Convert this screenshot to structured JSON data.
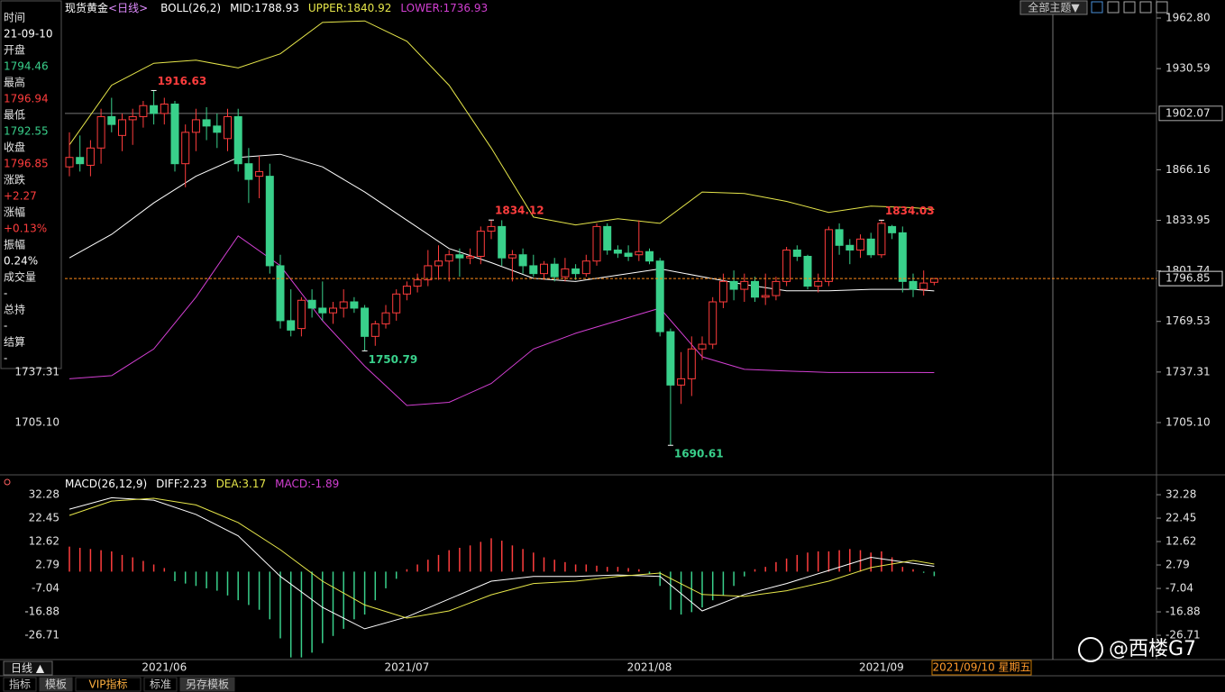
{
  "toolbar": {
    "theme_menu": "全部主题▼"
  },
  "info_panel": [
    {
      "label": "时间",
      "value": "21-09-10",
      "color": "#ffffff"
    },
    {
      "label": "开盘",
      "value": "1794.46",
      "color": "#39d08b"
    },
    {
      "label": "最高",
      "value": "1796.94",
      "color": "#ff3d3d"
    },
    {
      "label": "最低",
      "value": "1792.55",
      "color": "#39d08b"
    },
    {
      "label": "收盘",
      "value": "1796.85",
      "color": "#ff3d3d"
    },
    {
      "label": "涨跌",
      "value": "+2.27",
      "color": "#ff3d3d"
    },
    {
      "label": "涨幅",
      "value": "+0.13%",
      "color": "#ff3d3d"
    },
    {
      "label": "振幅",
      "value": "0.24%",
      "color": "#ffffff"
    },
    {
      "label": "成交量",
      "value": "-",
      "color": "#ffffff"
    },
    {
      "label": "总持",
      "value": "-",
      "color": "#ffffff"
    },
    {
      "label": "结算",
      "value": "-",
      "color": "#ffffff"
    }
  ],
  "chart_data": [
    {
      "type": "candlestick",
      "title": "现货黄金",
      "period": "<日线>",
      "indicator": "BOLL(26,2)",
      "up_color": "#ff3d3d",
      "down_color": "#39d08b",
      "categories": [
        null,
        null,
        null,
        null,
        null,
        null,
        null,
        null,
        null,
        "2021/06",
        null,
        null,
        null,
        null,
        null,
        null,
        null,
        null,
        null,
        null,
        null,
        null,
        null,
        null,
        null,
        null,
        null,
        null,
        null,
        null,
        null,
        null,
        "2021/07",
        null,
        null,
        null,
        null,
        null,
        null,
        null,
        null,
        null,
        null,
        null,
        null,
        null,
        null,
        null,
        null,
        null,
        null,
        null,
        null,
        null,
        null,
        "2021/08",
        null,
        null,
        null,
        null,
        null,
        null,
        null,
        null,
        null,
        null,
        null,
        null,
        null,
        null,
        null,
        null,
        null,
        null,
        null,
        null,
        null,
        "2021/09",
        null,
        null,
        null,
        null,
        null
      ],
      "open": [
        1868,
        1874,
        1869,
        1880,
        1900,
        1888,
        1898,
        1900,
        1907,
        1902,
        1908,
        1870,
        1890,
        1898,
        1894,
        1886,
        1900,
        1870,
        1862,
        1862,
        1805,
        1770,
        1765,
        1783,
        1778,
        1775,
        1778,
        1782,
        1778,
        1760,
        1768,
        1775,
        1787,
        1792,
        1796,
        1805,
        1808,
        1812,
        1810,
        1811,
        1827,
        1830,
        1810,
        1812,
        1805,
        1800,
        1806,
        1798,
        1803,
        1800,
        1808,
        1830,
        1815,
        1813,
        1812,
        1814,
        1808,
        1763,
        1729,
        1733,
        1752,
        1755,
        1782,
        1795,
        1790,
        1795,
        1785,
        1786,
        1795,
        1815,
        1811,
        1792,
        1795,
        1828,
        1818,
        1815,
        1822,
        1812,
        1830,
        1826,
        1795,
        1790,
        1794.46
      ],
      "high": [
        1890,
        1888,
        1885,
        1905,
        1912,
        1902,
        1905,
        1910,
        1916.63,
        1912,
        1910,
        1895,
        1905,
        1906,
        1902,
        1905,
        1905,
        1880,
        1875,
        1870,
        1812,
        1790,
        1785,
        1790,
        1795,
        1782,
        1790,
        1785,
        1780,
        1770,
        1780,
        1790,
        1795,
        1800,
        1815,
        1818,
        1815,
        1816,
        1816,
        1830,
        1834.12,
        1834,
        1815,
        1816,
        1812,
        1808,
        1810,
        1810,
        1806,
        1812,
        1832,
        1832,
        1818,
        1818,
        1834,
        1816,
        1810,
        1765,
        1750,
        1760,
        1760,
        1785,
        1800,
        1802,
        1800,
        1798,
        1800,
        1798,
        1817,
        1818,
        1812,
        1800,
        1830,
        1832,
        1822,
        1825,
        1826,
        1834.03,
        1831,
        1830,
        1800,
        1802,
        1796.94
      ],
      "low": [
        1862,
        1865,
        1862,
        1870,
        1890,
        1878,
        1882,
        1893,
        1895,
        1895,
        1865,
        1855,
        1878,
        1885,
        1880,
        1878,
        1865,
        1845,
        1848,
        1800,
        1765,
        1760,
        1760,
        1772,
        1770,
        1768,
        1772,
        1775,
        1750.79,
        1754,
        1765,
        1770,
        1783,
        1788,
        1792,
        1796,
        1795,
        1798,
        1806,
        1806,
        1822,
        1805,
        1795,
        1800,
        1798,
        1796,
        1795,
        1795,
        1796,
        1798,
        1805,
        1812,
        1810,
        1808,
        1808,
        1806,
        1760,
        1690.61,
        1717,
        1722,
        1745,
        1752,
        1778,
        1783,
        1782,
        1782,
        1780,
        1783,
        1792,
        1808,
        1790,
        1788,
        1792,
        1812,
        1806,
        1810,
        1810,
        1810,
        1822,
        1788,
        1785,
        1786,
        1792.55
      ],
      "close": [
        1874,
        1870,
        1880,
        1900,
        1895,
        1898,
        1900,
        1907,
        1902,
        1908,
        1870,
        1890,
        1898,
        1894,
        1890,
        1900,
        1870,
        1860,
        1865,
        1805,
        1770,
        1764,
        1783,
        1778,
        1775,
        1778,
        1782,
        1778,
        1760,
        1768,
        1775,
        1787,
        1792,
        1796,
        1805,
        1808,
        1812,
        1810,
        1811,
        1827,
        1830,
        1810,
        1812,
        1805,
        1800,
        1806,
        1798,
        1803,
        1800,
        1808,
        1830,
        1815,
        1813,
        1811,
        1814,
        1808,
        1763,
        1729,
        1733,
        1752,
        1755,
        1782,
        1795,
        1790,
        1795,
        1785,
        1786,
        1795,
        1815,
        1811,
        1792,
        1795,
        1828,
        1818,
        1815,
        1822,
        1812,
        1832,
        1826,
        1795,
        1790,
        1794,
        1796.85
      ],
      "series": [
        {
          "name": "MID:1788.93",
          "color": "#ffffff",
          "x": [
            0,
            4,
            8,
            12,
            16,
            20,
            24,
            28,
            32,
            36,
            40,
            44,
            48,
            52,
            56,
            60,
            64,
            68,
            72,
            76,
            80,
            82
          ],
          "values": [
            1810,
            1825,
            1845,
            1862,
            1874,
            1876,
            1868,
            1852,
            1834,
            1816,
            1807,
            1797,
            1795,
            1799,
            1803,
            1798,
            1793,
            1789,
            1789,
            1790,
            1790,
            1788.93
          ]
        },
        {
          "name": "UPPER:1840.92",
          "color": "#e6e64a",
          "x": [
            0,
            4,
            8,
            12,
            16,
            20,
            24,
            28,
            32,
            36,
            40,
            44,
            48,
            52,
            56,
            60,
            64,
            68,
            72,
            76,
            80,
            82
          ],
          "values": [
            1882,
            1920,
            1934,
            1936,
            1931,
            1940,
            1960,
            1961,
            1948,
            1920,
            1880,
            1836,
            1831,
            1835,
            1832,
            1852,
            1851,
            1846,
            1839,
            1843,
            1842,
            1840.92
          ]
        },
        {
          "name": "LOWER:1736.93",
          "color": "#d23fd2",
          "x": [
            0,
            4,
            8,
            12,
            16,
            20,
            24,
            28,
            32,
            36,
            40,
            44,
            48,
            52,
            56,
            60,
            64,
            68,
            72,
            76,
            80,
            82
          ],
          "values": [
            1733,
            1735,
            1752,
            1785,
            1824,
            1805,
            1770,
            1741,
            1716,
            1718,
            1730,
            1752,
            1762,
            1770,
            1778,
            1747,
            1739,
            1738,
            1737,
            1737,
            1737,
            1736.93
          ]
        }
      ],
      "annotations": [
        1916.63,
        1750.79,
        1834.12,
        1690.61,
        1834.03
      ],
      "crosshair_value": 1902.07,
      "ylim": [
        1671.8,
        1967.4
      ],
      "yticks": [
        {
          "value": 1962.8,
          "label": "1962.80"
        },
        1930.59,
        1866.16,
        1833.95,
        1801.74,
        1769.53,
        1737.31,
        {
          "value": 1705.1,
          "label": "1705.10"
        }
      ]
    },
    {
      "type": "macd",
      "title": "MACD(26,12,9)",
      "up_color": "#ff3d3d",
      "down_color": "#39d08b",
      "histogram": {
        "name": "MACD:-1.89",
        "color": "#d23fd2",
        "values": [
          10.5,
          10,
          9.5,
          9,
          8.5,
          7,
          6,
          4.5,
          3,
          1.5,
          -4,
          -5,
          -6,
          -7,
          -8,
          -10,
          -12,
          -14,
          -16,
          -20,
          -28,
          -36,
          -36,
          -34,
          -30,
          -27,
          -24,
          -20,
          -18,
          -12,
          -7,
          -3,
          1,
          3,
          5,
          7,
          9,
          10,
          11,
          12.5,
          14,
          13,
          11,
          9.5,
          8,
          6,
          5,
          4,
          3,
          3,
          2.5,
          2,
          2,
          1.5,
          1,
          -1,
          -6,
          -16,
          -18,
          -17,
          -15,
          -12,
          -10,
          -6,
          -2,
          1,
          2,
          4,
          5.5,
          7,
          8,
          8.5,
          8.5,
          9,
          9.5,
          9,
          8,
          8.5,
          6,
          2,
          1,
          -0.5,
          -1.89
        ]
      },
      "series": [
        {
          "name": "DIFF:2.23",
          "color": "#ffffff",
          "x": [
            0,
            4,
            8,
            12,
            16,
            20,
            24,
            28,
            32,
            36,
            40,
            44,
            48,
            52,
            56,
            60,
            64,
            68,
            72,
            76,
            80,
            82
          ],
          "values": [
            26.2,
            31,
            30,
            24,
            15,
            -2,
            -15,
            -24,
            -19,
            -11.5,
            -4,
            -2,
            -2,
            -1.4,
            -2,
            -16.5,
            -9.6,
            -5,
            0.5,
            6,
            3.5,
            2.23
          ]
        },
        {
          "name": "DEA:3.17",
          "color": "#e6e64a",
          "x": [
            0,
            4,
            8,
            12,
            16,
            20,
            24,
            28,
            32,
            36,
            40,
            44,
            48,
            52,
            56,
            60,
            64,
            68,
            72,
            76,
            80,
            82
          ],
          "values": [
            23.6,
            29.6,
            30.8,
            28,
            20.6,
            9.2,
            -4,
            -14,
            -19.5,
            -16.5,
            -9.7,
            -5,
            -4,
            -2,
            -0.6,
            -9.6,
            -10.4,
            -8,
            -4,
            1.7,
            4.7,
            3.17
          ]
        }
      ],
      "ylim": [
        -36.9,
        35.7
      ],
      "yticks": [
        32.28,
        22.45,
        12.62,
        2.79,
        -7.04,
        -16.88,
        -26.71
      ]
    }
  ],
  "cursor_date": "2021/09/10 星期五",
  "period_button": "日线 ▲",
  "bottom_tabs": [
    "指标",
    "模板",
    "VIP指标",
    "标准",
    "另存模板"
  ],
  "watermark": "@西楼G7"
}
